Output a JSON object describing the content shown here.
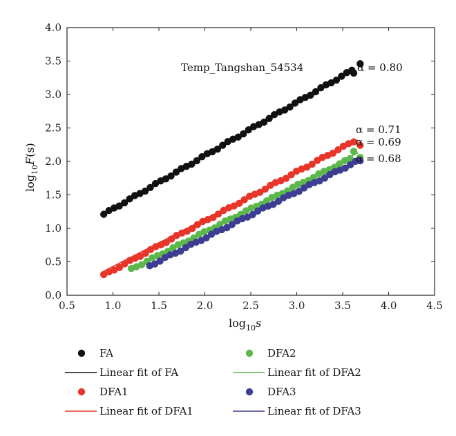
{
  "chart_data": {
    "type": "scatter",
    "annotation_title": "Temp_Tangshan_54534",
    "xlabel": {
      "base": "log",
      "sub": "10",
      "var": "s"
    },
    "ylabel": {
      "base": "log",
      "sub": "10",
      "var": "F",
      "arg": "(s)"
    },
    "xlim": [
      0.5,
      4.5
    ],
    "ylim": [
      0.0,
      4.0
    ],
    "x_ticks": [
      "0.5",
      "1.0",
      "1.5",
      "2.0",
      "2.5",
      "3.0",
      "3.5",
      "4.0",
      "4.5"
    ],
    "y_ticks": [
      "0.0",
      "0.5",
      "1.0",
      "1.5",
      "2.0",
      "2.5",
      "3.0",
      "3.5",
      "4.0"
    ],
    "grid": false,
    "legend_position": "bottom",
    "series": [
      {
        "name": "FA",
        "fit_name": "Linear fit of FA",
        "color": "#111111",
        "x_start": 0.9,
        "x_end": 3.6,
        "n": 49,
        "y_start": 1.21,
        "y_end": 3.36,
        "fit": [
          0.9,
          1.2,
          3.62,
          3.38
        ],
        "extra": [
          [
            3.62,
            3.32
          ],
          [
            3.69,
            3.46
          ]
        ],
        "alpha_label": "α = 0.80"
      },
      {
        "name": "DFA1",
        "fit_name": "Linear fit of DFA1",
        "color": "#e8352a",
        "x_start": 0.9,
        "x_end": 3.62,
        "n": 49,
        "y_start": 0.3,
        "y_end": 2.3,
        "fit": [
          0.9,
          0.36,
          3.67,
          2.32
        ],
        "extra": [
          [
            3.69,
            2.24
          ]
        ],
        "alpha_label": "α = 0.71"
      },
      {
        "name": "DFA2",
        "fit_name": "Linear fit of DFA2",
        "color": "#5cb84a",
        "x_start": 1.2,
        "x_end": 3.58,
        "n": 43,
        "y_start": 0.39,
        "y_end": 2.04,
        "fit": [
          1.2,
          0.39,
          3.67,
          2.13
        ],
        "extra": [
          [
            3.62,
            2.15
          ],
          [
            3.69,
            2.06
          ]
        ],
        "alpha_label": "α = 0.69"
      },
      {
        "name": "DFA3",
        "fit_name": "Linear fit of DFA3",
        "color": "#3d3d94",
        "x_start": 1.4,
        "x_end": 3.64,
        "n": 41,
        "y_start": 0.44,
        "y_end": 1.99,
        "fit": [
          1.4,
          0.44,
          3.69,
          2.03
        ],
        "extra": [
          [
            3.69,
            2.01
          ]
        ],
        "alpha_label": "α = 0.68"
      }
    ]
  }
}
